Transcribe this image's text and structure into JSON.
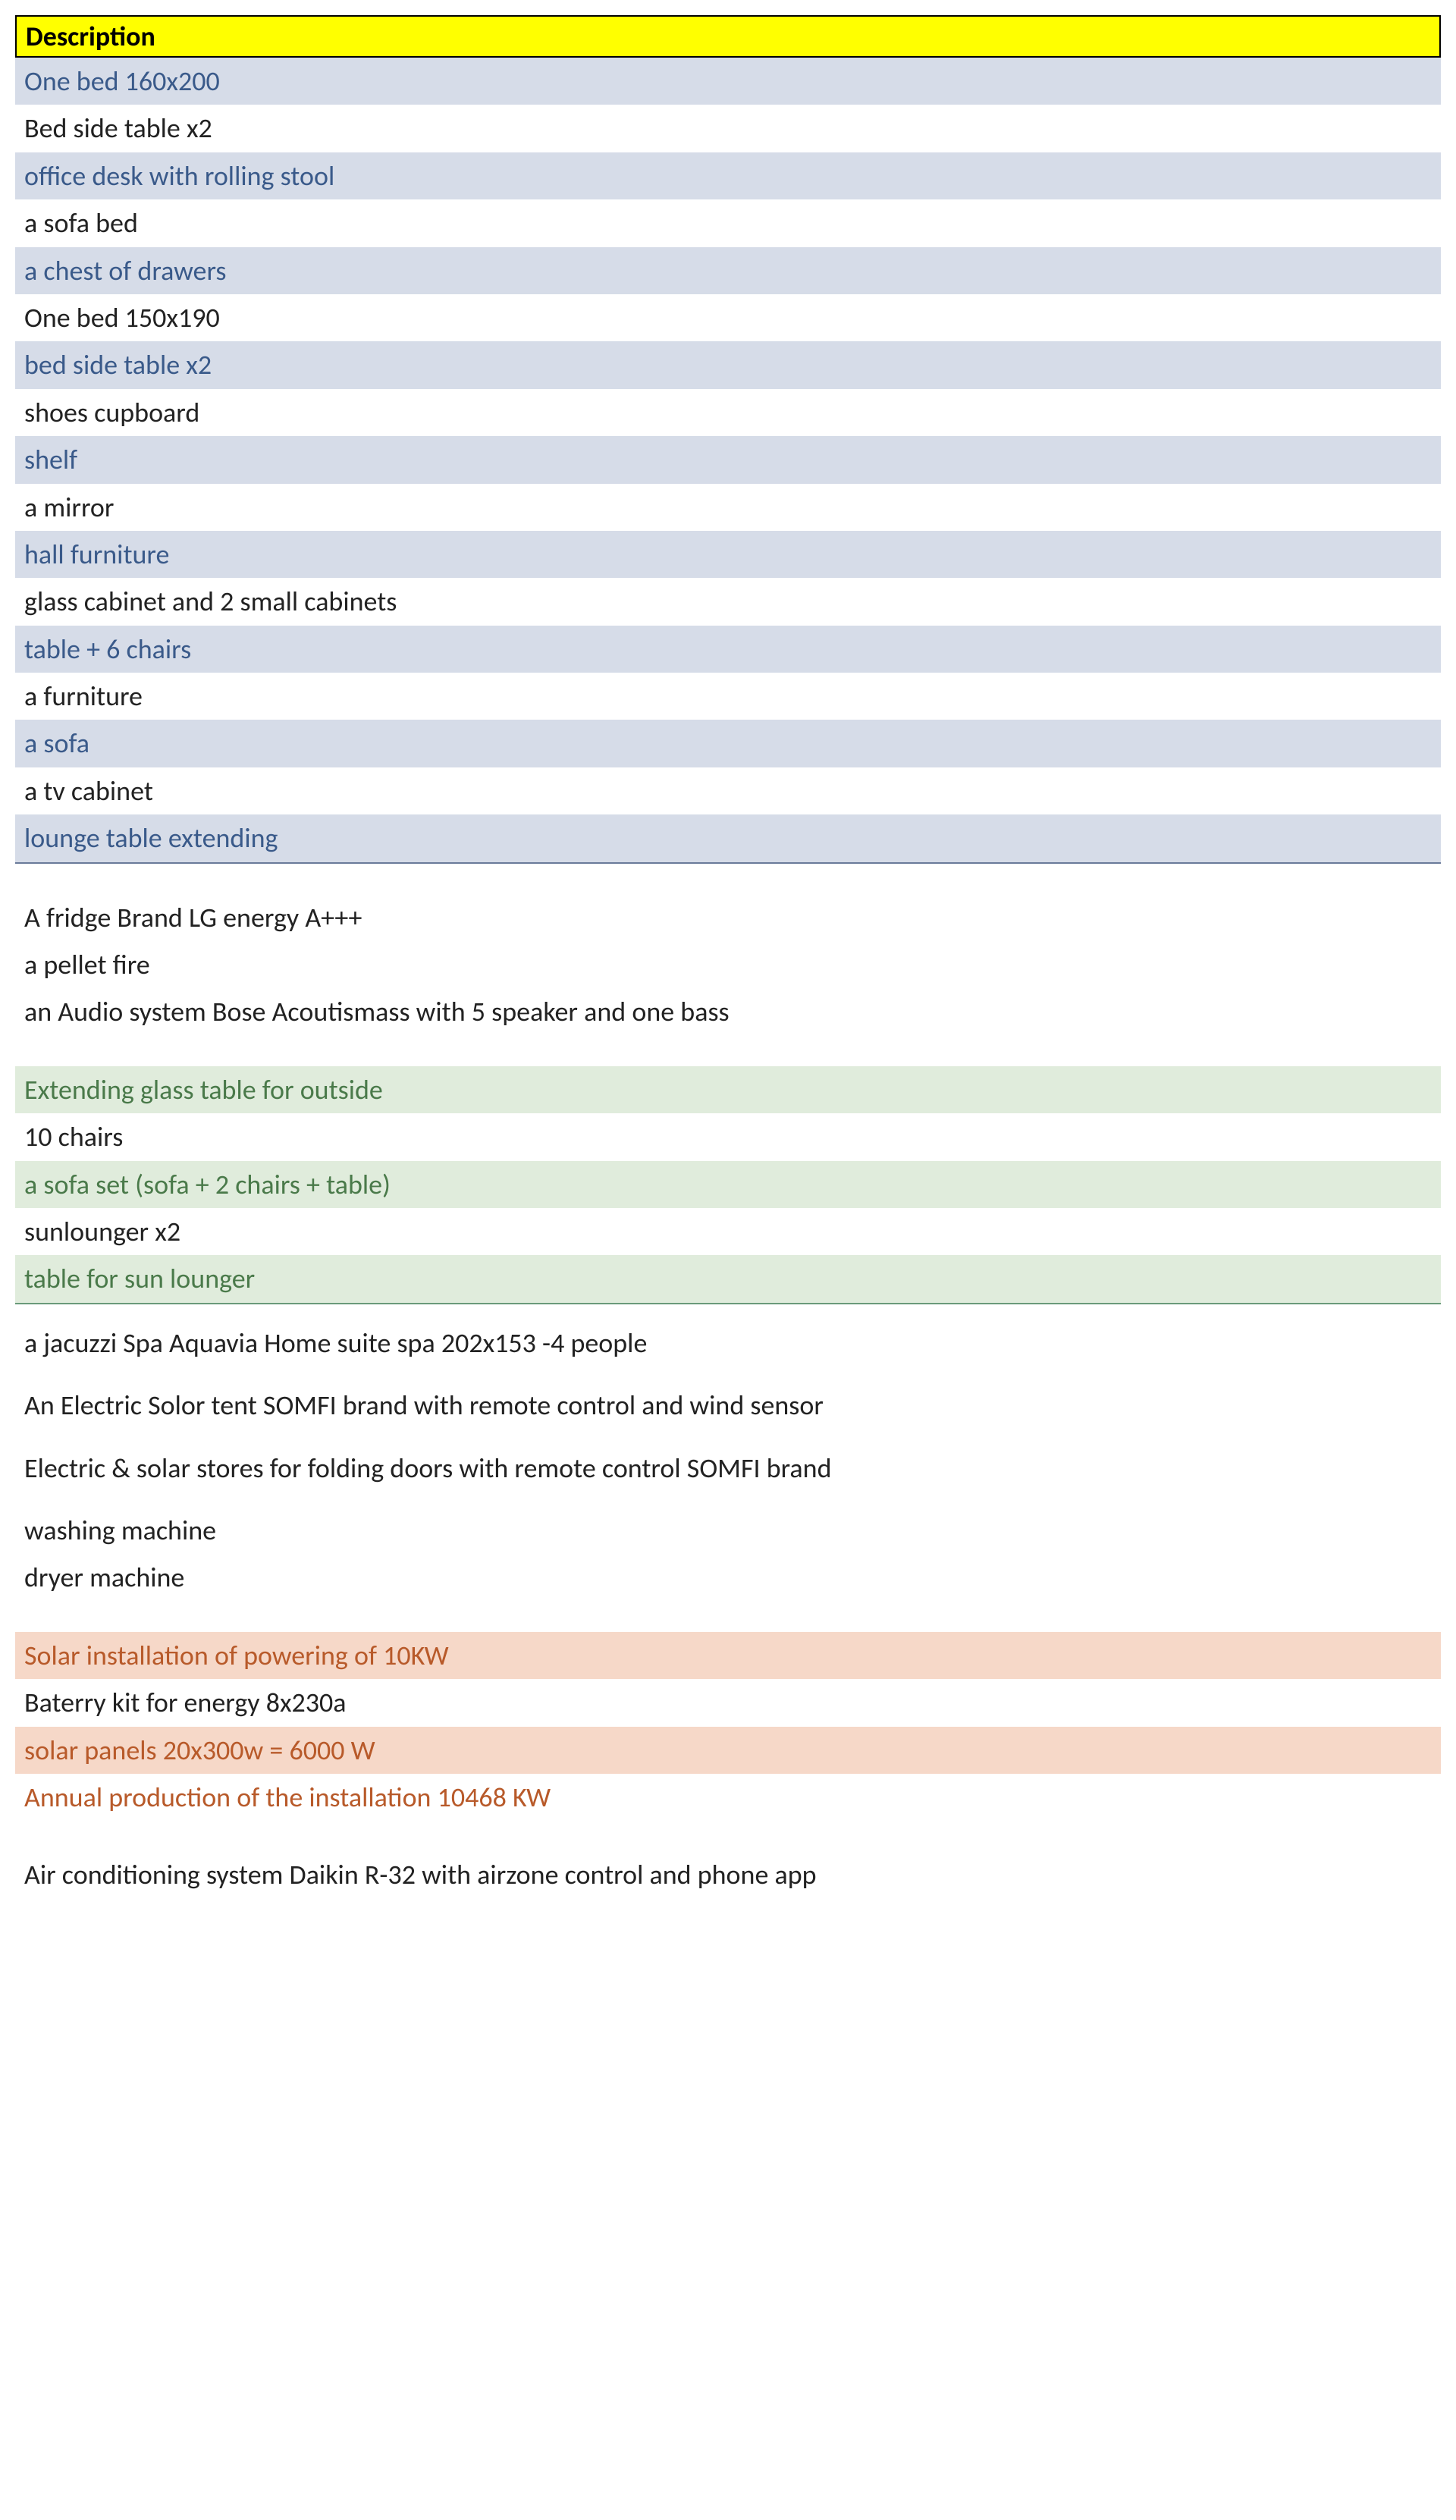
{
  "header": {
    "title": "Description"
  },
  "colors": {
    "header_bg": "#ffff00",
    "header_border": "#000000",
    "blue_band": "#d6dce8",
    "green_band": "#e0ecdc",
    "orange_band": "#f6d8c8",
    "blue_text": "#3a5a8a",
    "green_text": "#4a7a4a",
    "orange_text": "#b85a2a",
    "black_text": "#222222"
  },
  "fonts": {
    "family": "Calibri, Arial, sans-serif",
    "size_pt": 27,
    "header_weight": "bold"
  },
  "sections": {
    "furniture_blue": {
      "band_colors": [
        "blue",
        "white"
      ],
      "rows": [
        "One bed 160x200",
        "Bed side table x2",
        "office desk with rolling stool",
        "a sofa bed",
        "a chest of drawers",
        "One bed 150x190",
        "bed side table x2",
        "shoes cupboard",
        "shelf",
        "a mirror",
        "hall furniture",
        "glass cabinet and 2 small cabinets",
        "table + 6 chairs",
        "a furniture",
        "a sofa",
        "a tv cabinet",
        "lounge table extending"
      ]
    },
    "appliances_plain": {
      "rows": [
        "A fridge Brand LG energy A+++",
        "a pellet fire",
        "an Audio system Bose Acoutismass with 5 speaker and one bass"
      ]
    },
    "outdoor_green": {
      "band_colors": [
        "green",
        "white"
      ],
      "rows": [
        "Extending glass table for outside",
        "10 chairs",
        "a sofa set (sofa + 2 chairs + table)",
        "sunlounger x2",
        "table for sun lounger"
      ]
    },
    "misc_plain": {
      "rows": [
        "a jacuzzi Spa Aquavia Home suite spa  202x153 -4 people",
        "An Electric Solor tent SOMFI brand with remote control and wind sensor",
        "Electric & solar stores for folding doors with remote control SOMFI brand",
        "washing machine",
        "dryer machine"
      ]
    },
    "solar_orange": {
      "band_colors": [
        "orange",
        "white"
      ],
      "rows": [
        "Solar installation of powering of 10KW",
        "Baterry kit for energy 8x230a",
        "solar panels 20x300w = 6000 W",
        "Annual production of the installation  10468 KW"
      ]
    },
    "ac_plain": {
      "rows": [
        "Air conditioning system Daikin R-32 with airzone control and phone app"
      ]
    }
  }
}
